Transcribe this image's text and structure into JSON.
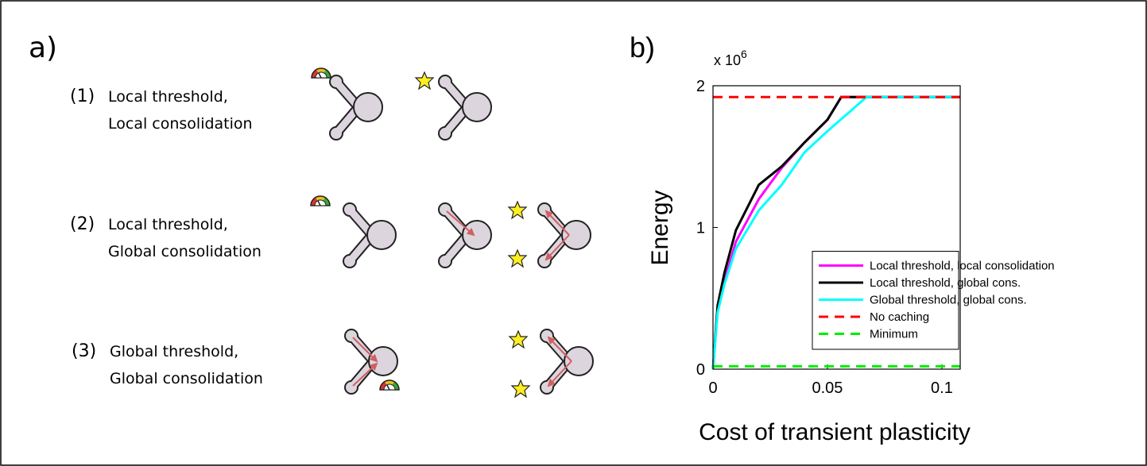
{
  "panel_a": {
    "label": "a)",
    "rows": [
      {
        "number": "(1)",
        "lines": [
          "Local threshold,",
          "Local consolidation"
        ]
      },
      {
        "number": "(2)",
        "lines": [
          "Local threshold,",
          "Global consolidation"
        ]
      },
      {
        "number": "(3)",
        "lines": [
          "Global threshold,",
          "Global consolidation"
        ]
      }
    ]
  },
  "chart_data": {
    "type": "line",
    "panel_label": "b)",
    "y_offset_text": "x 10",
    "y_offset_exponent": "6",
    "y_label": "Energy",
    "x_label": "Cost of transient plasticity",
    "xlim": [
      0,
      0.108
    ],
    "xticks": [
      0,
      0.05,
      0.1
    ],
    "ylim": [
      0,
      2
    ],
    "yticks": [
      0,
      1,
      2
    ],
    "legend": "lower right",
    "series": [
      {
        "name": "Local threshold, local consolidation",
        "color": "#ff00ff",
        "linestyle": "solid",
        "x": [
          0,
          0.002,
          0.005,
          0.01,
          0.02,
          0.03,
          0.04,
          0.05,
          0.056,
          0.108
        ],
        "values": [
          0,
          0.42,
          0.62,
          0.9,
          1.2,
          1.42,
          1.6,
          1.76,
          1.92,
          1.92
        ]
      },
      {
        "name": "Local threshold, global cons.",
        "color": "#000000",
        "linestyle": "solid",
        "x": [
          0,
          0.002,
          0.005,
          0.01,
          0.02,
          0.03,
          0.04,
          0.05,
          0.056,
          0.108
        ],
        "values": [
          0,
          0.45,
          0.68,
          0.98,
          1.3,
          1.43,
          1.6,
          1.76,
          1.92,
          1.92
        ]
      },
      {
        "name": "Global threshold, global cons.",
        "color": "#00ffff",
        "linestyle": "solid",
        "x": [
          0,
          0.002,
          0.005,
          0.01,
          0.02,
          0.03,
          0.04,
          0.05,
          0.06,
          0.067,
          0.108
        ],
        "values": [
          0,
          0.4,
          0.6,
          0.85,
          1.12,
          1.3,
          1.53,
          1.68,
          1.82,
          1.92,
          1.92
        ]
      },
      {
        "name": "No caching",
        "color": "#ff0000",
        "linestyle": "dashed",
        "x": [
          0,
          0.108
        ],
        "values": [
          1.92,
          1.92
        ]
      },
      {
        "name": "Minimum",
        "color": "#00ee00",
        "linestyle": "dashed",
        "x": [
          0,
          0.108
        ],
        "values": [
          0.02,
          0.02
        ]
      }
    ]
  }
}
